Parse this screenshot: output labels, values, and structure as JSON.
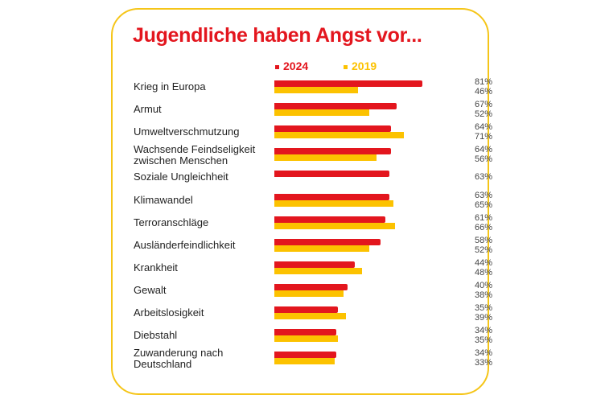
{
  "chart_data": {
    "type": "bar",
    "orientation": "horizontal",
    "title": "Jugendliche haben Angst vor...",
    "categories": [
      "Krieg in Europa",
      "Armut",
      "Umweltverschmutzung",
      "Wachsende Feindseligkeit zwischen Menschen",
      "Soziale Ungleichheit",
      "Klimawandel",
      "Terroranschläge",
      "Ausländerfeindlichkeit",
      "Krankheit",
      "Gewalt",
      "Arbeitslosigkeit",
      "Diebstahl",
      "Zuwanderung nach Deutschland"
    ],
    "series": [
      {
        "name": "2024",
        "color": "#e3161e",
        "values": [
          81,
          67,
          64,
          64,
          63,
          63,
          61,
          58,
          44,
          40,
          35,
          34,
          34
        ]
      },
      {
        "name": "2019",
        "color": "#fcc200",
        "values": [
          46,
          52,
          71,
          56,
          null,
          65,
          66,
          52,
          48,
          38,
          39,
          35,
          33
        ]
      }
    ],
    "unit": "%",
    "xlim": [
      0,
      100
    ],
    "grid": false,
    "legend": "top"
  },
  "colors": {
    "border": "#f5c518",
    "title": "#e3161e"
  }
}
